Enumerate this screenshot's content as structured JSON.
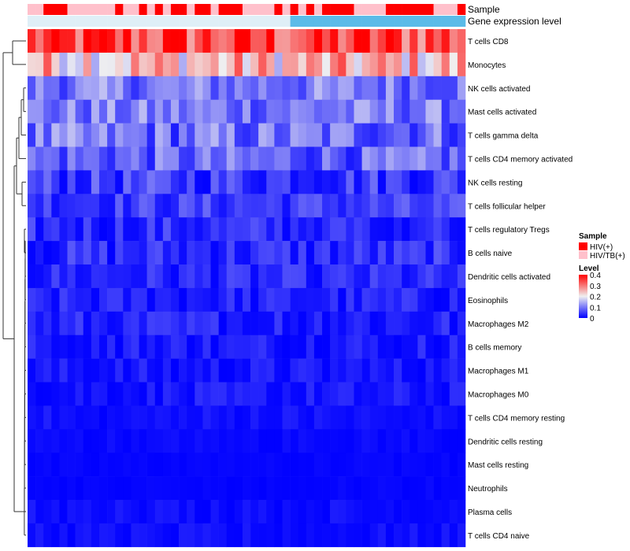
{
  "chart_data": {
    "type": "heatmap",
    "annotation_labels": [
      "Sample",
      "Gene expression level"
    ],
    "rows": [
      "T cells CD8",
      "Monocytes",
      "NK cells activated",
      "Mast cells activated",
      "T cells gamma delta",
      "T cells CD4 memory activated",
      "NK cells resting",
      "T cells follicular helper",
      "T cells regulatory  Tregs",
      "B cells naive",
      "Dendritic cells activated",
      "Eosinophils",
      "Macrophages M2",
      "B cells memory",
      "Macrophages M1",
      "Macrophages M0",
      "T cells CD4 memory resting",
      "Dendritic cells resting",
      "Mast cells resting",
      "Neutrophils",
      "Plasma cells",
      "T cells CD4 naive"
    ],
    "row_base": [
      0.34,
      0.24,
      0.1,
      0.1,
      0.09,
      0.08,
      0.05,
      0.05,
      0.035,
      0.035,
      0.03,
      0.025,
      0.025,
      0.02,
      0.015,
      0.015,
      0.01,
      0.006,
      0.003,
      0.002,
      0.008,
      0.008
    ],
    "row_spread": [
      0.1,
      0.1,
      0.06,
      0.06,
      0.07,
      0.06,
      0.05,
      0.04,
      0.04,
      0.04,
      0.035,
      0.03,
      0.035,
      0.03,
      0.025,
      0.025,
      0.02,
      0.01,
      0.005,
      0.004,
      0.018,
      0.016
    ],
    "sample_groups": [
      "HIV/TB(+)",
      "HIV/TB(+)",
      "HIV(+)",
      "HIV(+)",
      "HIV(+)",
      "HIV/TB(+)",
      "HIV/TB(+)",
      "HIV/TB(+)",
      "HIV/TB(+)",
      "HIV/TB(+)",
      "HIV/TB(+)",
      "HIV(+)",
      "HIV/TB(+)",
      "HIV/TB(+)",
      "HIV(+)",
      "HIV/TB(+)",
      "HIV(+)",
      "HIV/TB(+)",
      "HIV(+)",
      "HIV(+)",
      "HIV/TB(+)",
      "HIV(+)",
      "HIV(+)",
      "HIV/TB(+)",
      "HIV(+)",
      "HIV(+)",
      "HIV(+)",
      "HIV/TB(+)",
      "HIV/TB(+)",
      "HIV/TB(+)",
      "HIV/TB(+)",
      "HIV(+)",
      "HIV/TB(+)",
      "HIV(+)",
      "HIV/TB(+)",
      "HIV(+)",
      "HIV/TB(+)",
      "HIV(+)",
      "HIV(+)",
      "HIV(+)",
      "HIV(+)",
      "HIV/TB(+)",
      "HIV/TB(+)",
      "HIV/TB(+)",
      "HIV/TB(+)",
      "HIV(+)",
      "HIV(+)",
      "HIV(+)",
      "HIV(+)",
      "HIV(+)",
      "HIV(+)",
      "HIV/TB(+)",
      "HIV/TB(+)",
      "HIV/TB(+)",
      "HIV(+)"
    ],
    "expression_split_index": 33,
    "n_columns": 55,
    "color_scale": {
      "min": 0,
      "mid": 0.2,
      "max": 0.4,
      "low_color": "#0000ff",
      "mid_color": "#f0f0f0",
      "high_color": "#ff0000"
    },
    "legend": {
      "sample_title": "Sample",
      "sample_entries": [
        {
          "label": "HIV(+)",
          "color": "#ff0000"
        },
        {
          "label": "HIV/TB(+)",
          "color": "#ffc0cb"
        }
      ],
      "level_title": "Level",
      "level_ticks": [
        "0.4",
        "0.3",
        "0.2",
        "0.1",
        "0"
      ],
      "level_values": [
        0.4,
        0.3,
        0.2,
        0.1,
        0
      ]
    },
    "expression_colors": [
      "#dfeff7",
      "#5bbbe8"
    ],
    "position": "right"
  }
}
